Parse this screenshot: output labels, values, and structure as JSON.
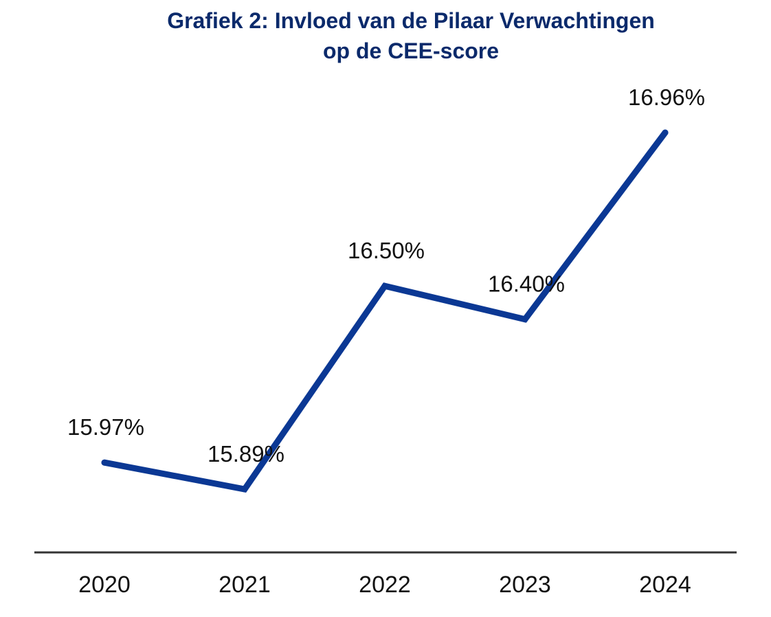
{
  "chart_data": {
    "type": "line",
    "title": [
      "Grafiek 2: Invloed van de Pilaar Verwachtingen",
      "op de CEE-score"
    ],
    "categories": [
      "2020",
      "2021",
      "2022",
      "2023",
      "2024"
    ],
    "series": [
      {
        "values": [
          15.97,
          15.89,
          16.5,
          16.4,
          16.96
        ],
        "data_labels": [
          "15.97%",
          "15.89%",
          "16.50%",
          "16.40%",
          "16.96%"
        ],
        "color": "#0b3894"
      }
    ],
    "xlabel": "",
    "ylabel": "",
    "ylim": [
      15.7,
      17.2
    ],
    "grid": false,
    "legend": "none",
    "colors": {
      "title": "#0b2a6b",
      "axis": "#333333",
      "text": "#111111"
    }
  }
}
